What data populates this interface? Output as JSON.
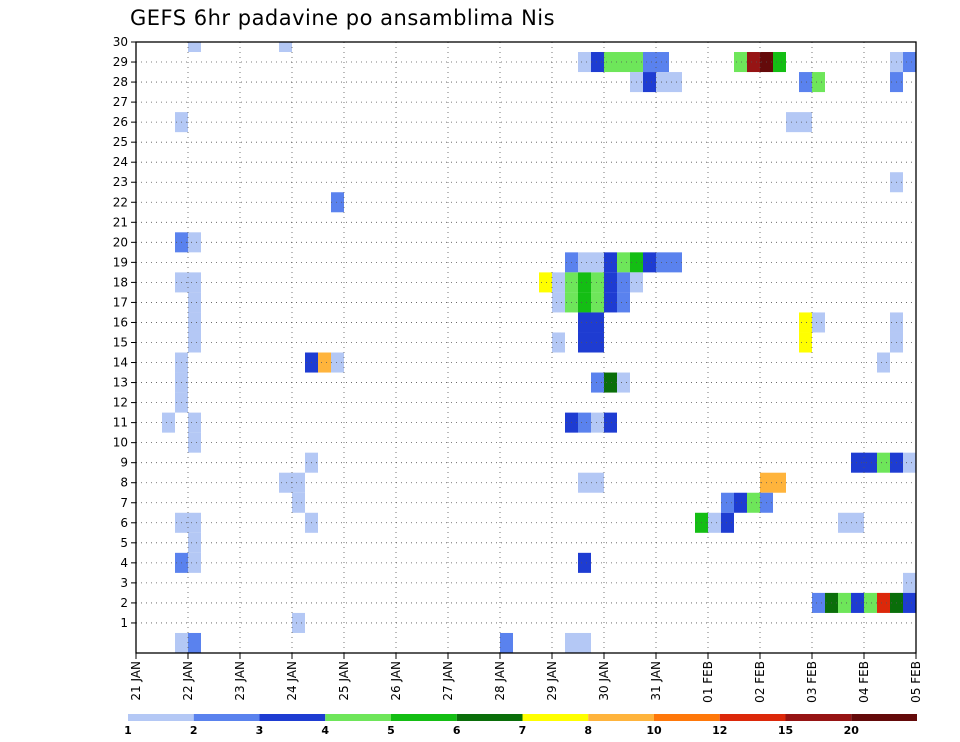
{
  "chart_data": {
    "type": "heatmap",
    "title": "GEFS 6hr padavine po ansamblima Nis",
    "xlabel": "",
    "ylabel": "",
    "x_axis": {
      "unit": "day",
      "start": "21 JAN",
      "steps_per_day": 4,
      "range_days": [
        0,
        15
      ],
      "ticks": [
        {
          "day": 0,
          "label": "21 JAN"
        },
        {
          "day": 1,
          "label": "22 JAN"
        },
        {
          "day": 2,
          "label": "23 JAN"
        },
        {
          "day": 3,
          "label": "24 JAN"
        },
        {
          "day": 4,
          "label": "25 JAN"
        },
        {
          "day": 5,
          "label": "26 JAN"
        },
        {
          "day": 6,
          "label": "27 JAN"
        },
        {
          "day": 7,
          "label": "28 JAN"
        },
        {
          "day": 8,
          "label": "29 JAN"
        },
        {
          "day": 9,
          "label": "30 JAN"
        },
        {
          "day": 10,
          "label": "31 JAN"
        },
        {
          "day": 11,
          "label": "01 FEB"
        },
        {
          "day": 12,
          "label": "02 FEB"
        },
        {
          "day": 13,
          "label": "03 FEB"
        },
        {
          "day": 14,
          "label": "04 FEB"
        },
        {
          "day": 15,
          "label": "05 FEB"
        }
      ]
    },
    "y_axis": {
      "unit": "ensemble member",
      "ylim": [
        0,
        30
      ],
      "ticks": [
        1,
        2,
        3,
        4,
        5,
        6,
        7,
        8,
        9,
        10,
        11,
        12,
        13,
        14,
        15,
        16,
        17,
        18,
        19,
        20,
        21,
        22,
        23,
        24,
        25,
        26,
        27,
        28,
        29,
        30
      ]
    },
    "grid": true,
    "legend": {
      "placement": "bottom",
      "colors": [
        "#b4c8f5",
        "#5a82ee",
        "#1e3cd2",
        "#6ee65a",
        "#14be14",
        "#0a6e0a",
        "#ffff00",
        "#ffb43c",
        "#ff780a",
        "#dc280a",
        "#961414",
        "#640a0a"
      ],
      "labels": [
        "1",
        "2",
        "3",
        "4",
        "5",
        "6",
        "7",
        "8",
        "10",
        "12",
        "15",
        "20"
      ]
    },
    "cells": [
      {
        "member": 30,
        "x": [
          1.0,
          1.25
        ],
        "c": 0
      },
      {
        "member": 30,
        "x": [
          2.75,
          3.0
        ],
        "c": 0
      },
      {
        "member": 29,
        "x": [
          8.5,
          8.75
        ],
        "c": 0
      },
      {
        "member": 29,
        "x": [
          8.75,
          9.0
        ],
        "c": 2
      },
      {
        "member": 29,
        "x": [
          9.0,
          9.75
        ],
        "c": 3
      },
      {
        "member": 29,
        "x": [
          9.75,
          10.25
        ],
        "c": 1
      },
      {
        "member": 29,
        "x": [
          11.5,
          11.75
        ],
        "c": 3
      },
      {
        "member": 29,
        "x": [
          11.75,
          12.0
        ],
        "c": 10
      },
      {
        "member": 29,
        "x": [
          12.0,
          12.25
        ],
        "c": 11
      },
      {
        "member": 29,
        "x": [
          12.25,
          12.5
        ],
        "c": 4
      },
      {
        "member": 29,
        "x": [
          14.5,
          14.75
        ],
        "c": 0
      },
      {
        "member": 29,
        "x": [
          14.75,
          15.0
        ],
        "c": 1
      },
      {
        "member": 28,
        "x": [
          9.5,
          9.75
        ],
        "c": 0
      },
      {
        "member": 28,
        "x": [
          9.75,
          10.0
        ],
        "c": 2
      },
      {
        "member": 28,
        "x": [
          10.0,
          10.5
        ],
        "c": 0
      },
      {
        "member": 28,
        "x": [
          12.75,
          13.0
        ],
        "c": 1
      },
      {
        "member": 28,
        "x": [
          13.0,
          13.25
        ],
        "c": 3
      },
      {
        "member": 28,
        "x": [
          14.5,
          14.75
        ],
        "c": 1
      },
      {
        "member": 26,
        "x": [
          0.75,
          1.0
        ],
        "c": 0
      },
      {
        "member": 26,
        "x": [
          12.5,
          13.0
        ],
        "c": 0
      },
      {
        "member": 23,
        "x": [
          14.5,
          14.75
        ],
        "c": 0
      },
      {
        "member": 22,
        "x": [
          3.75,
          4.0
        ],
        "c": 1
      },
      {
        "member": 20,
        "x": [
          0.75,
          1.0
        ],
        "c": 1
      },
      {
        "member": 20,
        "x": [
          1.0,
          1.25
        ],
        "c": 0
      },
      {
        "member": 19,
        "x": [
          8.25,
          8.5
        ],
        "c": 1
      },
      {
        "member": 19,
        "x": [
          8.5,
          9.0
        ],
        "c": 0
      },
      {
        "member": 19,
        "x": [
          9.0,
          9.25
        ],
        "c": 2
      },
      {
        "member": 19,
        "x": [
          9.25,
          9.5
        ],
        "c": 3
      },
      {
        "member": 19,
        "x": [
          9.5,
          9.75
        ],
        "c": 4
      },
      {
        "member": 19,
        "x": [
          9.75,
          10.0
        ],
        "c": 2
      },
      {
        "member": 19,
        "x": [
          10.0,
          10.5
        ],
        "c": 1
      },
      {
        "member": 18,
        "x": [
          0.75,
          1.25
        ],
        "c": 0
      },
      {
        "member": 18,
        "x": [
          7.75,
          8.0
        ],
        "c": 6
      },
      {
        "member": 18,
        "x": [
          8.0,
          8.25
        ],
        "c": 0
      },
      {
        "member": 18,
        "x": [
          8.25,
          8.5
        ],
        "c": 3
      },
      {
        "member": 18,
        "x": [
          8.5,
          8.75
        ],
        "c": 4
      },
      {
        "member": 18,
        "x": [
          8.75,
          9.0
        ],
        "c": 3
      },
      {
        "member": 18,
        "x": [
          9.0,
          9.25
        ],
        "c": 2
      },
      {
        "member": 18,
        "x": [
          9.25,
          9.5
        ],
        "c": 1
      },
      {
        "member": 18,
        "x": [
          9.5,
          9.75
        ],
        "c": 0
      },
      {
        "member": 17,
        "x": [
          1.0,
          1.25
        ],
        "c": 0
      },
      {
        "member": 17,
        "x": [
          8.0,
          8.25
        ],
        "c": 0
      },
      {
        "member": 17,
        "x": [
          8.25,
          8.5
        ],
        "c": 3
      },
      {
        "member": 17,
        "x": [
          8.5,
          8.75
        ],
        "c": 4
      },
      {
        "member": 17,
        "x": [
          8.75,
          9.0
        ],
        "c": 3
      },
      {
        "member": 17,
        "x": [
          9.0,
          9.25
        ],
        "c": 2
      },
      {
        "member": 17,
        "x": [
          9.25,
          9.5
        ],
        "c": 1
      },
      {
        "member": 16,
        "x": [
          1.0,
          1.25
        ],
        "c": 0
      },
      {
        "member": 16,
        "x": [
          8.5,
          9.0
        ],
        "c": 2
      },
      {
        "member": 16,
        "x": [
          12.75,
          13.0
        ],
        "c": 6
      },
      {
        "member": 16,
        "x": [
          13.0,
          13.25
        ],
        "c": 0
      },
      {
        "member": 16,
        "x": [
          14.5,
          14.75
        ],
        "c": 0
      },
      {
        "member": 15,
        "x": [
          1.0,
          1.25
        ],
        "c": 0
      },
      {
        "member": 15,
        "x": [
          8.0,
          8.25
        ],
        "c": 0
      },
      {
        "member": 15,
        "x": [
          8.5,
          9.0
        ],
        "c": 2
      },
      {
        "member": 15,
        "x": [
          12.75,
          13.0
        ],
        "c": 6
      },
      {
        "member": 15,
        "x": [
          14.5,
          14.75
        ],
        "c": 0
      },
      {
        "member": 14,
        "x": [
          3.25,
          3.5
        ],
        "c": 2
      },
      {
        "member": 14,
        "x": [
          3.5,
          3.75
        ],
        "c": 7
      },
      {
        "member": 14,
        "x": [
          3.75,
          4.0
        ],
        "c": 0
      },
      {
        "member": 14,
        "x": [
          0.75,
          1.0
        ],
        "c": 0
      },
      {
        "member": 14,
        "x": [
          14.25,
          14.5
        ],
        "c": 0
      },
      {
        "member": 13,
        "x": [
          0.75,
          1.0
        ],
        "c": 0
      },
      {
        "member": 13,
        "x": [
          8.75,
          9.0
        ],
        "c": 1
      },
      {
        "member": 13,
        "x": [
          9.0,
          9.25
        ],
        "c": 5
      },
      {
        "member": 13,
        "x": [
          9.25,
          9.5
        ],
        "c": 0
      },
      {
        "member": 12,
        "x": [
          0.75,
          1.0
        ],
        "c": 0
      },
      {
        "member": 11,
        "x": [
          0.5,
          0.75
        ],
        "c": 0
      },
      {
        "member": 11,
        "x": [
          1.0,
          1.25
        ],
        "c": 0
      },
      {
        "member": 11,
        "x": [
          8.25,
          8.5
        ],
        "c": 2
      },
      {
        "member": 11,
        "x": [
          8.5,
          8.75
        ],
        "c": 1
      },
      {
        "member": 11,
        "x": [
          8.75,
          9.0
        ],
        "c": 0
      },
      {
        "member": 11,
        "x": [
          9.0,
          9.25
        ],
        "c": 2
      },
      {
        "member": 10,
        "x": [
          1.0,
          1.25
        ],
        "c": 0
      },
      {
        "member": 9,
        "x": [
          3.25,
          3.5
        ],
        "c": 0
      },
      {
        "member": 9,
        "x": [
          13.75,
          14.25
        ],
        "c": 2
      },
      {
        "member": 9,
        "x": [
          14.25,
          14.5
        ],
        "c": 3
      },
      {
        "member": 9,
        "x": [
          14.5,
          14.75
        ],
        "c": 2
      },
      {
        "member": 9,
        "x": [
          14.75,
          15.0
        ],
        "c": 0
      },
      {
        "member": 8,
        "x": [
          2.75,
          3.25
        ],
        "c": 0
      },
      {
        "member": 8,
        "x": [
          8.5,
          9.0
        ],
        "c": 0
      },
      {
        "member": 8,
        "x": [
          12.0,
          12.5
        ],
        "c": 7
      },
      {
        "member": 7,
        "x": [
          3.0,
          3.25
        ],
        "c": 0
      },
      {
        "member": 7,
        "x": [
          11.25,
          11.5
        ],
        "c": 1
      },
      {
        "member": 7,
        "x": [
          11.5,
          11.75
        ],
        "c": 2
      },
      {
        "member": 7,
        "x": [
          11.75,
          12.0
        ],
        "c": 3
      },
      {
        "member": 7,
        "x": [
          12.0,
          12.25
        ],
        "c": 1
      },
      {
        "member": 6,
        "x": [
          0.75,
          1.25
        ],
        "c": 0
      },
      {
        "member": 6,
        "x": [
          3.25,
          3.5
        ],
        "c": 0
      },
      {
        "member": 6,
        "x": [
          10.75,
          11.0
        ],
        "c": 4
      },
      {
        "member": 6,
        "x": [
          11.0,
          11.25
        ],
        "c": 0
      },
      {
        "member": 6,
        "x": [
          11.25,
          11.5
        ],
        "c": 2
      },
      {
        "member": 6,
        "x": [
          13.5,
          14.0
        ],
        "c": 0
      },
      {
        "member": 5,
        "x": [
          1.0,
          1.25
        ],
        "c": 0
      },
      {
        "member": 4,
        "x": [
          0.75,
          1.0
        ],
        "c": 1
      },
      {
        "member": 4,
        "x": [
          1.0,
          1.25
        ],
        "c": 0
      },
      {
        "member": 4,
        "x": [
          8.5,
          8.75
        ],
        "c": 2
      },
      {
        "member": 3,
        "x": [
          14.75,
          15.0
        ],
        "c": 0
      },
      {
        "member": 2,
        "x": [
          13.0,
          13.25
        ],
        "c": 1
      },
      {
        "member": 2,
        "x": [
          13.25,
          13.5
        ],
        "c": 5
      },
      {
        "member": 2,
        "x": [
          13.5,
          13.75
        ],
        "c": 3
      },
      {
        "member": 2,
        "x": [
          13.75,
          14.0
        ],
        "c": 2
      },
      {
        "member": 2,
        "x": [
          14.0,
          14.25
        ],
        "c": 3
      },
      {
        "member": 2,
        "x": [
          14.25,
          14.5
        ],
        "c": 9
      },
      {
        "member": 2,
        "x": [
          14.5,
          14.75
        ],
        "c": 5
      },
      {
        "member": 2,
        "x": [
          14.75,
          15.0
        ],
        "c": 2
      },
      {
        "member": 1,
        "x": [
          3.0,
          3.25
        ],
        "c": 0
      },
      {
        "member": 0,
        "x": [
          0.75,
          1.0
        ],
        "c": 0
      },
      {
        "member": 0,
        "x": [
          1.0,
          1.25
        ],
        "c": 1
      },
      {
        "member": 0,
        "x": [
          7.0,
          7.25
        ],
        "c": 1
      },
      {
        "member": 0,
        "x": [
          8.25,
          8.75
        ],
        "c": 0
      }
    ]
  }
}
